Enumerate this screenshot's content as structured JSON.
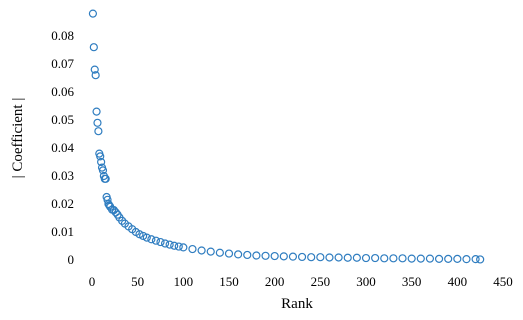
{
  "chart_data": {
    "type": "scatter",
    "xlabel": "Rank",
    "ylabel": "| Coefficient |",
    "xlim": [
      0,
      450
    ],
    "ylim": [
      0,
      0.09
    ],
    "x_ticks": [
      "0",
      "50",
      "100",
      "150",
      "200",
      "250",
      "300",
      "350",
      "400",
      "450"
    ],
    "y_ticks": [
      "0",
      "0.01",
      "0.02",
      "0.03",
      "0.04",
      "0.05",
      "0.06",
      "0.07",
      "0.08"
    ],
    "grid": false,
    "legend": "none",
    "marker": "hollow-circle",
    "marker_color": "#2f7dc0",
    "series": [
      {
        "x": [
          1,
          2,
          3,
          4,
          5,
          6,
          7,
          8,
          9,
          10,
          11,
          12,
          13,
          14,
          15,
          16,
          17,
          18,
          19,
          20,
          22,
          24,
          26,
          28,
          30,
          33,
          36,
          40,
          44,
          48,
          52,
          56,
          60,
          65,
          70,
          75,
          80,
          85,
          90,
          95,
          100,
          110,
          120,
          130,
          140,
          150,
          160,
          170,
          180,
          190,
          200,
          210,
          220,
          230,
          240,
          250,
          260,
          270,
          280,
          290,
          300,
          310,
          320,
          330,
          340,
          350,
          360,
          370,
          380,
          390,
          400,
          410,
          420,
          425
        ],
        "y": [
          0.088,
          0.076,
          0.068,
          0.066,
          0.053,
          0.049,
          0.046,
          0.038,
          0.037,
          0.035,
          0.033,
          0.032,
          0.03,
          0.029,
          0.029,
          0.0225,
          0.0215,
          0.02,
          0.0195,
          0.019,
          0.018,
          0.0178,
          0.017,
          0.0162,
          0.0152,
          0.014,
          0.013,
          0.012,
          0.011,
          0.01,
          0.0092,
          0.0086,
          0.008,
          0.0074,
          0.0069,
          0.0064,
          0.0059,
          0.0055,
          0.0051,
          0.0048,
          0.0045,
          0.0039,
          0.0034,
          0.003,
          0.0026,
          0.0023,
          0.002,
          0.0018,
          0.0016,
          0.0015,
          0.0014,
          0.0013,
          0.0012,
          0.0011,
          0.001,
          0.001,
          0.0009,
          0.0009,
          0.0008,
          0.0008,
          0.0007,
          0.0007,
          0.0006,
          0.0006,
          0.0006,
          0.0005,
          0.0005,
          0.0005,
          0.0004,
          0.0004,
          0.0004,
          0.0003,
          0.0003,
          0.0002
        ]
      }
    ]
  }
}
